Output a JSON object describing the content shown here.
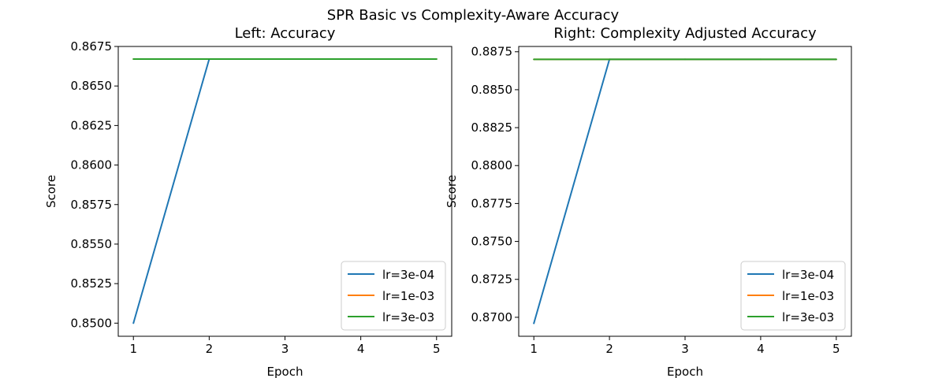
{
  "figure": {
    "suptitle": "SPR Basic vs Complexity-Aware Accuracy"
  },
  "colors": {
    "lr=3e-04": "#1f77b4",
    "lr=1e-03": "#ff7f0e",
    "lr=3e-03": "#2ca02c"
  },
  "chart_data": [
    {
      "type": "line",
      "title": "Left: Accuracy",
      "xlabel": "Epoch",
      "ylabel": "Score",
      "x": [
        1,
        2,
        3,
        4,
        5
      ],
      "xticks": [
        "1",
        "2",
        "3",
        "4",
        "5"
      ],
      "yticks": [
        "0.8500",
        "0.8525",
        "0.8550",
        "0.8575",
        "0.8600",
        "0.8625",
        "0.8650",
        "0.8675"
      ],
      "xlim": [
        0.8,
        5.2
      ],
      "ylim": [
        0.84917,
        0.8675
      ],
      "grid": false,
      "legend": "lower right",
      "series": [
        {
          "name": "lr=3e-04",
          "values": [
            0.85,
            0.8667,
            0.8667,
            0.8667,
            0.8667
          ]
        },
        {
          "name": "lr=1e-03",
          "values": [
            0.8667,
            0.8667,
            0.8667,
            0.8667,
            0.8667
          ]
        },
        {
          "name": "lr=3e-03",
          "values": [
            0.8667,
            0.8667,
            0.8667,
            0.8667,
            0.8667
          ]
        }
      ]
    },
    {
      "type": "line",
      "title": "Right: Complexity Adjusted Accuracy",
      "xlabel": "Epoch",
      "ylabel": "Score",
      "x": [
        1,
        2,
        3,
        4,
        5
      ],
      "xticks": [
        "1",
        "2",
        "3",
        "4",
        "5"
      ],
      "yticks": [
        "0.8700",
        "0.8725",
        "0.8750",
        "0.8775",
        "0.8800",
        "0.8825",
        "0.8850",
        "0.8875"
      ],
      "xlim": [
        0.8,
        5.2
      ],
      "ylim": [
        0.86875,
        0.88785
      ],
      "grid": false,
      "legend": "lower right",
      "series": [
        {
          "name": "lr=3e-04",
          "values": [
            0.8696,
            0.887,
            0.887,
            0.887,
            0.887
          ]
        },
        {
          "name": "lr=1e-03",
          "values": [
            0.887,
            0.887,
            0.887,
            0.887,
            0.887
          ]
        },
        {
          "name": "lr=3e-03",
          "values": [
            0.887,
            0.887,
            0.887,
            0.887,
            0.887
          ]
        }
      ]
    }
  ]
}
